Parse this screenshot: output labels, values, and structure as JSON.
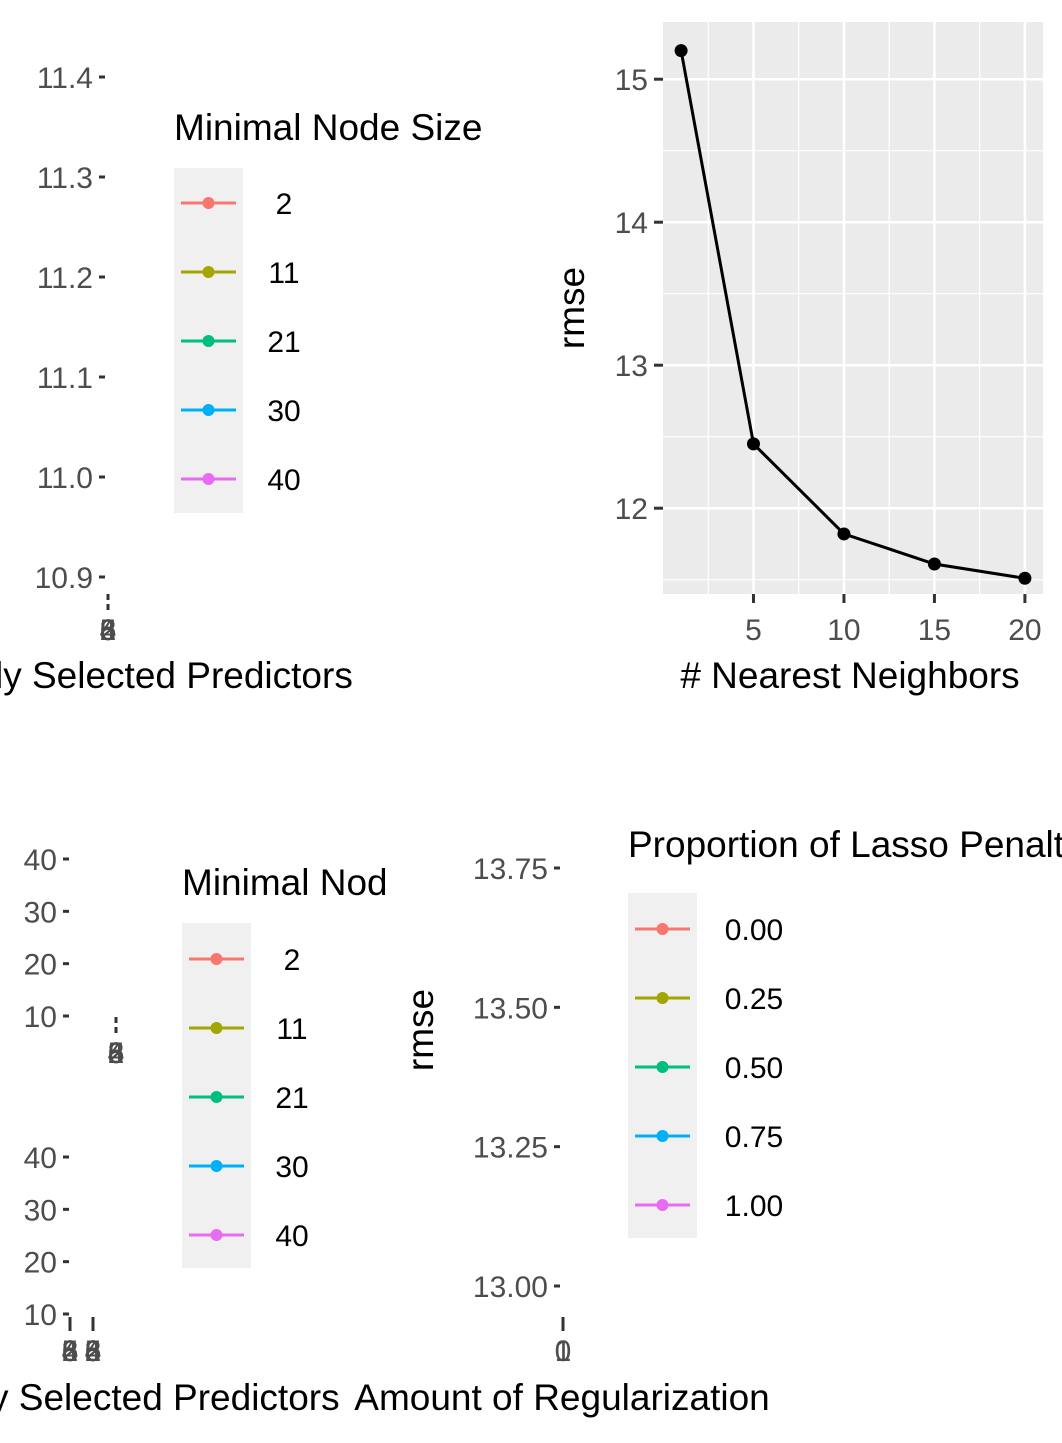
{
  "panel_a": {
    "xlabel_visible": "ly Selected Predictors",
    "yticks": [
      "11.4",
      "11.3",
      "11.2",
      "11.1",
      "11.0",
      "10.9"
    ],
    "xticks": [
      "2",
      "6",
      "4",
      "5",
      "8"
    ],
    "legend": {
      "title": "Minimal Node Size",
      "items": [
        {
          "label": "2",
          "color": "#F8766D"
        },
        {
          "label": "11",
          "color": "#A3A500"
        },
        {
          "label": "21",
          "color": "#00BF7D"
        },
        {
          "label": "30",
          "color": "#00B0F6"
        },
        {
          "label": "40",
          "color": "#E76BF3"
        }
      ]
    }
  },
  "panel_b": {
    "xlabel": "# Nearest Neighbors",
    "ylabel": "rmse",
    "yticks": [
      "15",
      "14",
      "13",
      "12"
    ],
    "xticks": [
      "5",
      "10",
      "15",
      "20"
    ]
  },
  "panel_c": {
    "xlabel_visible": "y Selected Predictors",
    "yticks_upper": [
      "40",
      "30",
      "20",
      "10"
    ],
    "yticks_lower": [
      "40",
      "30",
      "20",
      "10"
    ],
    "strip_ticks": [
      "2",
      "6",
      "4",
      "5",
      "8"
    ],
    "xticks_a": [
      "2",
      "6",
      "4",
      "5",
      "8"
    ],
    "xticks_b": [
      "2",
      "6",
      "4",
      "5",
      "8"
    ],
    "legend": {
      "title": "Minimal Node Size",
      "items": [
        {
          "label": "2",
          "color": "#F8766D"
        },
        {
          "label": "11",
          "color": "#A3A500"
        },
        {
          "label": "21",
          "color": "#00BF7D"
        },
        {
          "label": "30",
          "color": "#00B0F6"
        },
        {
          "label": "40",
          "color": "#E76BF3"
        }
      ]
    }
  },
  "panel_d": {
    "xlabel": "Amount of Regularization",
    "ylabel": "rmse",
    "yticks": [
      "13.75",
      "13.50",
      "13.25",
      "13.00"
    ],
    "xticks": [
      "1",
      "0"
    ],
    "legend": {
      "title": "Proportion of Lasso Penalty",
      "items": [
        {
          "label": "0.00",
          "color": "#F8766D"
        },
        {
          "label": "0.25",
          "color": "#A3A500"
        },
        {
          "label": "0.50",
          "color": "#00BF7D"
        },
        {
          "label": "0.75",
          "color": "#00B0F6"
        },
        {
          "label": "1.00",
          "color": "#E76BF3"
        }
      ]
    }
  },
  "chart_data": [
    {
      "type": "line",
      "panel": "top-left",
      "title": "",
      "xlabel": "Randomly Selected Predictors",
      "ylabel": "",
      "ylim": [
        10.9,
        11.4
      ],
      "series": [],
      "legend": {
        "title": "Minimal Node Size",
        "entries": [
          "2",
          "11",
          "21",
          "30",
          "40"
        ],
        "placement": "right"
      }
    },
    {
      "type": "line",
      "panel": "top-right",
      "title": "",
      "xlabel": "# Nearest Neighbors",
      "ylabel": "rmse",
      "xlim": [
        0,
        21
      ],
      "ylim": [
        11.4,
        15.4
      ],
      "grid": true,
      "x": [
        1,
        5,
        10,
        15,
        20
      ],
      "series": [
        {
          "values": [
            15.2,
            12.45,
            11.82,
            11.61,
            11.51
          ]
        }
      ]
    },
    {
      "type": "line",
      "panel": "bottom-left",
      "title": "",
      "xlabel": "Randomly Selected Predictors",
      "ylabel": "",
      "series": [],
      "legend": {
        "title": "Minimal Node Size",
        "entries": [
          "2",
          "11",
          "21",
          "30",
          "40"
        ],
        "placement": "right"
      }
    },
    {
      "type": "line",
      "panel": "bottom-right",
      "title": "",
      "xlabel": "Amount of Regularization",
      "ylabel": "rmse",
      "ylim": [
        13.0,
        13.75
      ],
      "series": [],
      "legend": {
        "title": "Proportion of Lasso Penalty",
        "entries": [
          "0.00",
          "0.25",
          "0.50",
          "0.75",
          "1.00"
        ],
        "placement": "right"
      }
    }
  ]
}
